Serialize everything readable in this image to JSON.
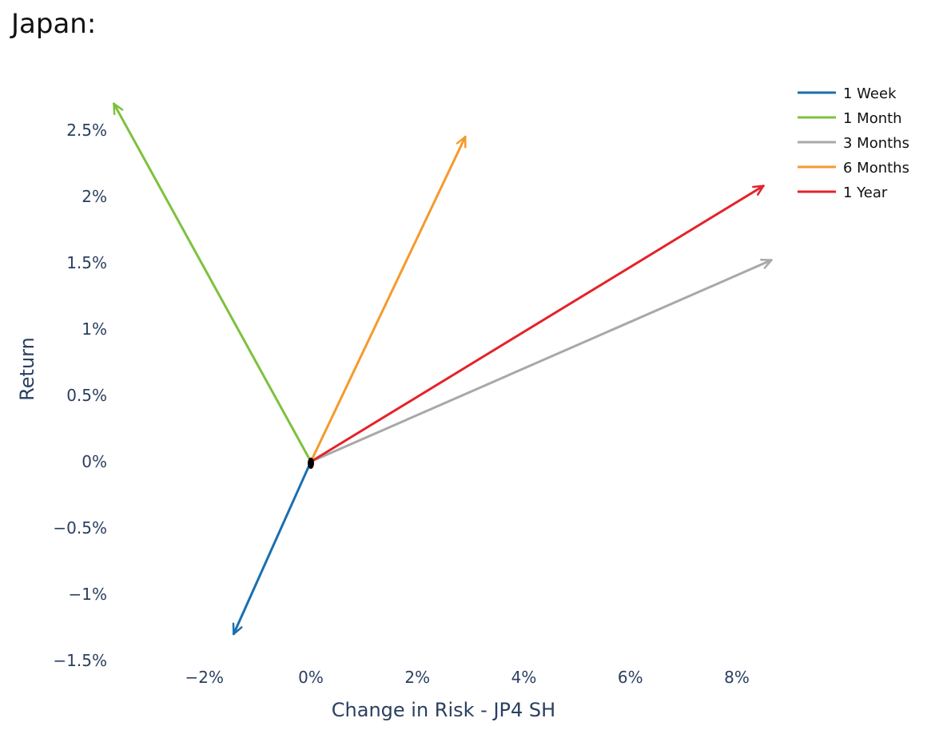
{
  "page": {
    "title": "Japan:"
  },
  "chart_data": {
    "type": "vector",
    "title": "",
    "xlabel": "Change in Risk - JP4 SH",
    "ylabel": "Return",
    "xlim": [
      -4.0,
      9.0
    ],
    "ylim": [
      -1.55,
      2.95
    ],
    "xticks": [
      -2,
      0,
      2,
      4,
      6,
      8
    ],
    "xtick_labels": [
      "−2%",
      "0%",
      "2%",
      "4%",
      "6%",
      "8%"
    ],
    "yticks": [
      -1.5,
      -1,
      -0.5,
      0,
      0.5,
      1,
      1.5,
      2,
      2.5
    ],
    "ytick_labels": [
      "−1.5%",
      "−1%",
      "−0.5%",
      "0%",
      "0.5%",
      "1%",
      "1.5%",
      "2%",
      "2.5%"
    ],
    "grid": false,
    "legend_position": "top-right",
    "origin": {
      "x": 0,
      "y": 0
    },
    "series": [
      {
        "name": "1 Week",
        "color": "#1a6faf",
        "x": [
          0,
          -1.45
        ],
        "y": [
          0,
          -1.3
        ]
      },
      {
        "name": "1 Month",
        "color": "#7dc13d",
        "x": [
          0,
          -3.7
        ],
        "y": [
          0,
          2.7
        ]
      },
      {
        "name": "3 Months",
        "color": "#a8a8a8",
        "x": [
          0,
          8.65
        ],
        "y": [
          0,
          1.52
        ]
      },
      {
        "name": "6 Months",
        "color": "#f59a2c",
        "x": [
          0,
          2.9
        ],
        "y": [
          0,
          2.45
        ]
      },
      {
        "name": "1 Year",
        "color": "#e52229",
        "x": [
          0,
          8.5
        ],
        "y": [
          0,
          2.08
        ]
      }
    ]
  }
}
